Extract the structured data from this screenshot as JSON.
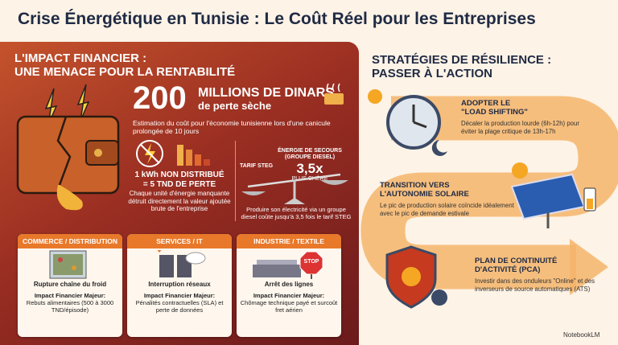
{
  "header": {
    "title": "Crise Énergétique en Tunisie : Le Coût Réel pour les Entreprises"
  },
  "impact": {
    "heading": [
      "L'IMPACT FINANCIER :",
      "UNE MENACE POUR LA RENTABILITÉ"
    ],
    "headline": {
      "number": "200",
      "unit": "MILLIONS DE DINARS",
      "subunit": "de perte sèche",
      "description": "Estimation du coût pour l'économie tunisienne lors d'une canicule prolongée de 10 jours"
    },
    "kwh": {
      "title": [
        "1 kWh NON DISTRIBUÉ",
        "= 5 TND DE PERTE"
      ],
      "description": "Chaque unité d'énergie manquante détruit directement la valeur ajoutée brute de l'entreprise"
    },
    "diesel": {
      "left_label": "TARIF STEG",
      "right_label": [
        "ÉNERGIE DE SECOURS",
        "(GROUPE DIESEL)"
      ],
      "multiplier": "3,5x",
      "multiplier_caption": "PLUS CHÈRE",
      "description": "Produire son électricité via un groupe diesel coûte jusqu'à 3,5 fois le tarif STEG"
    },
    "sectors": [
      {
        "name": "COMMERCE / DISTRIBUTION",
        "event": "Rupture chaîne du froid",
        "impact_label": "Impact Financier Majeur:",
        "impact": "Rebuts alimentaires (500 à 3000 TND/épisode)"
      },
      {
        "name": "SERVICES / IT",
        "event": "Interruption réseaux",
        "impact_label": "Impact Financier Majeur:",
        "impact": "Pénalités contractuelles (SLA) et perte de données"
      },
      {
        "name": "INDUSTRIE / TEXTILE",
        "event": "Arrêt des lignes",
        "impact_label": "Impact Financier Majeur:",
        "impact": "Chômage technique payé et surcoût fret aérien",
        "sign": "STOP"
      }
    ]
  },
  "strategies": {
    "heading": [
      "STRATÉGIES DE RÉSILIENCE :",
      "PASSER À L'ACTION"
    ],
    "items": [
      {
        "title": [
          "ADOPTER LE",
          "\"LOAD SHIFTING\""
        ],
        "description": "Décaler la production lourde (6h-12h) pour éviter la plage critique de 13h-17h"
      },
      {
        "title": [
          "TRANSITION VERS",
          "L'AUTONOMIE SOLAIRE"
        ],
        "description": "Le pic de production solaire coïncide idéalement avec le pic de demande estivale"
      },
      {
        "title": [
          "PLAN DE CONTINUITÉ",
          "D'ACTIVITÉ (PCA)"
        ],
        "description": "Investir dans des onduleurs \"Online\" et des inverseurs de source automatiques (ATS)"
      }
    ]
  },
  "footer": {
    "brand": "NotebookLM"
  }
}
